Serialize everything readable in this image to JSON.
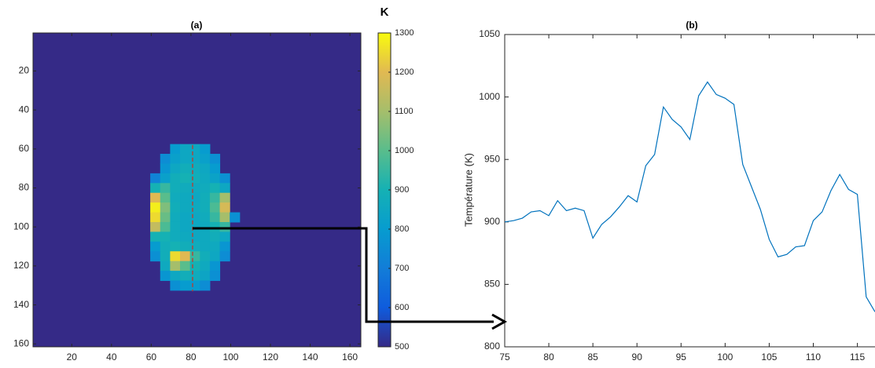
{
  "chart_data": [
    {
      "type": "heatmap",
      "title": "(a)",
      "xlim": [
        0.5,
        165.5
      ],
      "ylim": [
        0.5,
        161.5
      ],
      "yreverse": true,
      "xticks": [
        20,
        40,
        60,
        80,
        100,
        120,
        140,
        160
      ],
      "yticks": [
        20,
        40,
        60,
        80,
        100,
        120,
        140,
        160
      ],
      "background": 500,
      "x": [
        62,
        67,
        72,
        77,
        82,
        87,
        92,
        97,
        102
      ],
      "y": [
        60,
        65,
        70,
        75,
        80,
        85,
        90,
        95,
        100,
        105,
        110,
        115,
        120,
        125,
        130
      ],
      "z": [
        [
          null,
          null,
          800,
          850,
          850,
          800,
          null,
          null,
          null
        ],
        [
          null,
          750,
          820,
          850,
          850,
          820,
          760,
          null,
          null
        ],
        [
          null,
          780,
          850,
          880,
          870,
          850,
          800,
          null,
          null
        ],
        [
          720,
          820,
          880,
          900,
          880,
          860,
          830,
          760,
          null
        ],
        [
          900,
          950,
          880,
          870,
          860,
          870,
          900,
          850,
          null
        ],
        [
          1200,
          1000,
          870,
          860,
          850,
          880,
          950,
          1100,
          null
        ],
        [
          1280,
          1050,
          880,
          860,
          860,
          880,
          980,
          1180,
          null
        ],
        [
          1250,
          1020,
          870,
          850,
          850,
          870,
          950,
          1100,
          760
        ],
        [
          1150,
          980,
          870,
          850,
          850,
          860,
          900,
          950,
          null
        ],
        [
          900,
          900,
          870,
          860,
          850,
          860,
          880,
          850,
          null
        ],
        [
          800,
          880,
          900,
          880,
          870,
          860,
          860,
          780,
          null
        ],
        [
          760,
          880,
          1250,
          1200,
          950,
          880,
          850,
          750,
          null
        ],
        [
          null,
          860,
          1100,
          1000,
          900,
          860,
          780,
          null,
          null
        ],
        [
          null,
          780,
          850,
          880,
          870,
          840,
          760,
          null,
          null
        ],
        [
          null,
          null,
          760,
          800,
          800,
          750,
          null,
          null,
          null
        ]
      ],
      "colorbar": {
        "label": "K",
        "lim": [
          500,
          1300
        ],
        "ticks": [
          500,
          600,
          700,
          800,
          900,
          1000,
          1100,
          1200,
          1300
        ]
      }
    },
    {
      "type": "line",
      "title": "(b)",
      "ylabel": "Température (K)",
      "xlim": [
        75,
        117
      ],
      "ylim": [
        800,
        1050
      ],
      "xticks": [
        75,
        80,
        85,
        90,
        95,
        100,
        105,
        110,
        115
      ],
      "yticks": [
        800,
        850,
        900,
        950,
        1000,
        1050
      ],
      "x": [
        75,
        76,
        77,
        78,
        79,
        80,
        81,
        82,
        83,
        84,
        85,
        86,
        87,
        88,
        89,
        90,
        91,
        92,
        93,
        94,
        95,
        96,
        97,
        98,
        99,
        100,
        101,
        102,
        103,
        104,
        105,
        106,
        107,
        108,
        109,
        110,
        111,
        112,
        113,
        114,
        115,
        116,
        117
      ],
      "series": [
        {
          "color": "#0072bd",
          "values": [
            900,
            901,
            903,
            908,
            909,
            905,
            917,
            909,
            911,
            909,
            887,
            898,
            904,
            912,
            921,
            916,
            945,
            954,
            992,
            982,
            976,
            966,
            1001,
            1012,
            1002,
            999,
            994,
            946,
            928,
            910,
            886,
            872,
            874,
            880,
            881,
            901,
            908,
            925,
            938,
            926,
            922,
            840,
            828
          ]
        }
      ]
    }
  ]
}
